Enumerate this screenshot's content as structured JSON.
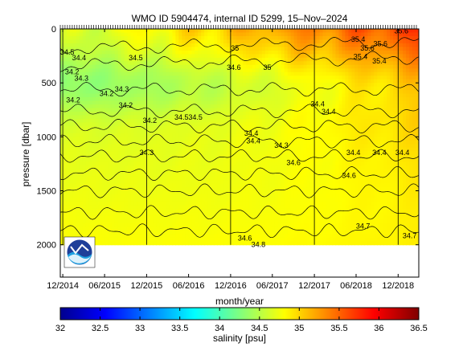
{
  "chart_data": {
    "type": "heatmap",
    "title": "WMO ID 5904474, internal ID 5299, 15–Nov–2024",
    "xlabel": "month/year",
    "ylabel": "pressure [dbar]",
    "x_range": [
      "2014-11-20",
      "2019-03-01"
    ],
    "y_range": [
      2300,
      0
    ],
    "y_axis_reversed": true,
    "x_tick_labels": [
      "12/2014",
      "06/2015",
      "12/2015",
      "06/2016",
      "12/2016",
      "06/2017",
      "12/2017",
      "06/2018",
      "12/2018"
    ],
    "x_tick_dates": [
      "2014-12-01",
      "2015-06-01",
      "2015-12-01",
      "2016-06-01",
      "2016-12-01",
      "2017-06-01",
      "2017-12-01",
      "2018-06-01",
      "2018-12-01"
    ],
    "y_ticks": [
      0,
      500,
      1000,
      1500,
      2000
    ],
    "year_boundaries": [
      "2014-12-01",
      "2015-12-01",
      "2016-12-01",
      "2017-12-01",
      "2018-12-01"
    ],
    "max_profile_pressure": 2000,
    "colorbar": {
      "label": "salinity [psu]",
      "range": [
        32,
        36.5
      ],
      "ticks": [
        32,
        32.5,
        33,
        33.5,
        34,
        34.5,
        35,
        35.5,
        36,
        36.5
      ],
      "colormap": "jet"
    },
    "contour_levels": [
      34.2,
      34.3,
      34.4,
      34.5,
      34.6,
      34.7,
      34.8,
      35,
      35.2,
      35.4,
      35.6
    ],
    "contour_labels": [
      {
        "text": "34.5",
        "date": "2014-12-20",
        "p": 240
      },
      {
        "text": "34.2",
        "date": "2015-01-10",
        "p": 420
      },
      {
        "text": "34.4",
        "date": "2015-02-10",
        "p": 290
      },
      {
        "text": "34.3",
        "date": "2015-02-20",
        "p": 480
      },
      {
        "text": "34.2",
        "date": "2015-01-15",
        "p": 680
      },
      {
        "text": "34.2",
        "date": "2015-06-10",
        "p": 620
      },
      {
        "text": "34.2",
        "date": "2015-09-01",
        "p": 730
      },
      {
        "text": "34.3",
        "date": "2015-08-15",
        "p": 580
      },
      {
        "text": "34.5",
        "date": "2015-10-15",
        "p": 290
      },
      {
        "text": "34.2",
        "date": "2015-12-15",
        "p": 870
      },
      {
        "text": "34.3",
        "date": "2015-12-01",
        "p": 1170
      },
      {
        "text": "34.5",
        "date": "2016-05-01",
        "p": 840
      },
      {
        "text": "34.5",
        "date": "2016-07-01",
        "p": 840
      },
      {
        "text": "34.6",
        "date": "2016-12-15",
        "p": 380
      },
      {
        "text": "35",
        "date": "2016-12-20",
        "p": 200
      },
      {
        "text": "34.4",
        "date": "2017-03-01",
        "p": 990
      },
      {
        "text": "34.4",
        "date": "2017-03-10",
        "p": 1060
      },
      {
        "text": "34.3",
        "date": "2017-07-10",
        "p": 1100
      },
      {
        "text": "35",
        "date": "2017-05-10",
        "p": 380
      },
      {
        "text": "34.6",
        "date": "2017-09-01",
        "p": 1260
      },
      {
        "text": "34.4",
        "date": "2017-12-15",
        "p": 720
      },
      {
        "text": "34.4",
        "date": "2018-02-01",
        "p": 790
      },
      {
        "text": "35.4",
        "date": "2018-06-10",
        "p": 120
      },
      {
        "text": "35.6",
        "date": "2018-07-20",
        "p": 200
      },
      {
        "text": "35.6",
        "date": "2018-09-15",
        "p": 160
      },
      {
        "text": "35.4",
        "date": "2018-06-20",
        "p": 280
      },
      {
        "text": "35.4",
        "date": "2018-09-10",
        "p": 320
      },
      {
        "text": "35.6",
        "date": "2018-12-15",
        "p": 40
      },
      {
        "text": "34.4",
        "date": "2018-05-20",
        "p": 1170
      },
      {
        "text": "34.4",
        "date": "2018-09-10",
        "p": 1170
      },
      {
        "text": "34.4",
        "date": "2018-12-20",
        "p": 1170
      },
      {
        "text": "34.6",
        "date": "2018-05-01",
        "p": 1380
      },
      {
        "text": "34.7",
        "date": "2018-07-01",
        "p": 1850
      },
      {
        "text": "34.6",
        "date": "2017-02-01",
        "p": 1960
      },
      {
        "text": "34.8",
        "date": "2017-04-01",
        "p": 2020
      },
      {
        "text": "34.7",
        "date": "2019-01-20",
        "p": 1940
      }
    ]
  }
}
